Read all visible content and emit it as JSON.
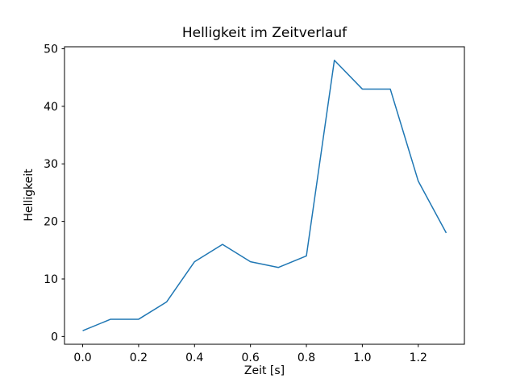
{
  "chart_data": {
    "type": "line",
    "title": "Helligkeit im Zeitverlauf",
    "xlabel": "Zeit [s]",
    "ylabel": "Helligkeit",
    "x": [
      0.0,
      0.1,
      0.2,
      0.3,
      0.4,
      0.5,
      0.6,
      0.7,
      0.8,
      0.9,
      1.0,
      1.1,
      1.2,
      1.3
    ],
    "y": [
      1,
      3,
      3,
      6,
      13,
      16,
      13,
      12,
      14,
      48,
      43,
      43,
      27,
      18
    ],
    "xticks": [
      0.0,
      0.2,
      0.4,
      0.6,
      0.8,
      1.0,
      1.2
    ],
    "xtick_labels": [
      "0.0",
      "0.2",
      "0.4",
      "0.6",
      "0.8",
      "1.0",
      "1.2"
    ],
    "yticks": [
      0,
      10,
      20,
      30,
      40,
      50
    ],
    "ytick_labels": [
      "0",
      "10",
      "20",
      "30",
      "40",
      "50"
    ],
    "xlim": [
      -0.065,
      1.365
    ],
    "ylim": [
      -1.35,
      50.35
    ],
    "grid": false,
    "legend": null,
    "line_color": "#1f77b4",
    "line_width": 1.5,
    "spine_color": "#000000",
    "background_color": "#ffffff"
  }
}
